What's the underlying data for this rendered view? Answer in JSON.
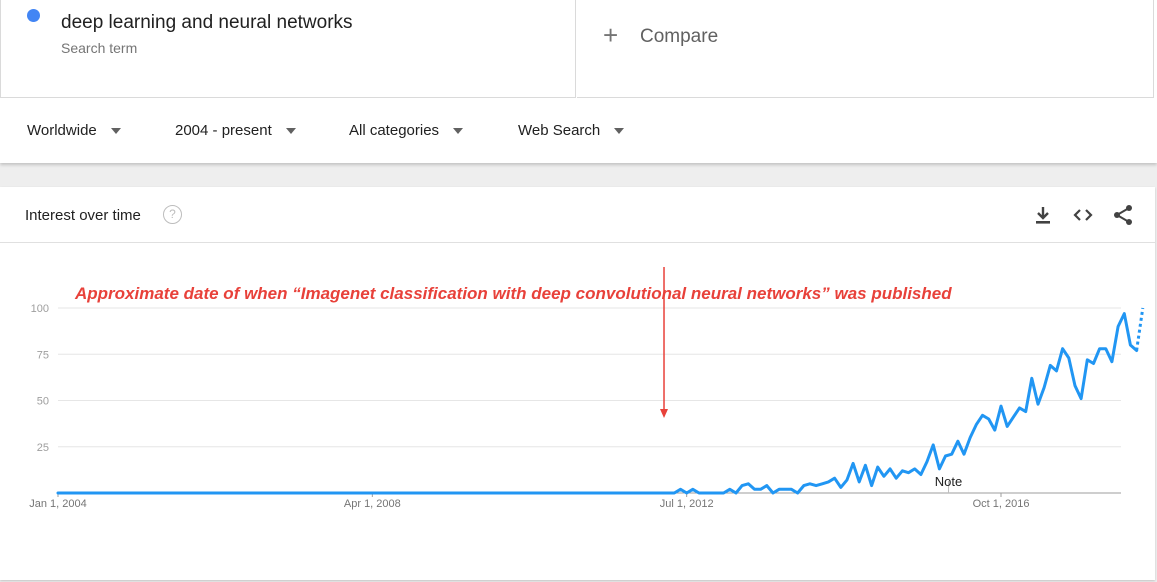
{
  "search": {
    "term": "deep learning and neural networks",
    "term_sub": "Search term",
    "term_color": "#4285f4",
    "compare_label": "Compare"
  },
  "filters": [
    {
      "label": "Worldwide"
    },
    {
      "label": "2004 - present"
    },
    {
      "label": "All categories"
    },
    {
      "label": "Web Search"
    }
  ],
  "card": {
    "title": "Interest over time",
    "help_icon": "question-circle-icon",
    "actions": [
      "download-icon",
      "embed-code-icon",
      "share-icon"
    ]
  },
  "annotation": {
    "text": "Approximate date of when “Imagenet classification with deep convolutional neural networks” was  published",
    "color": "#e8413a",
    "arrow_date": "2012-03"
  },
  "chart_data": {
    "type": "line",
    "ylim": [
      0,
      100
    ],
    "y_ticks": [
      25,
      50,
      75,
      100
    ],
    "grid": true,
    "x_ticks": [
      "Jan 1, 2004",
      "Apr 1, 2008",
      "Jul 1, 2012",
      "Oct 1, 2016"
    ],
    "x_range": [
      "2004-01",
      "2018-05"
    ],
    "note_label": "Note",
    "note_date": "2016-01",
    "line_color": "#2196f3",
    "series": [
      {
        "points": [
          [
            "2004-01",
            0
          ],
          [
            "2012-05",
            0
          ],
          [
            "2012-06",
            2
          ],
          [
            "2012-07",
            0
          ],
          [
            "2012-08",
            2
          ],
          [
            "2012-09",
            0
          ],
          [
            "2013-01",
            0
          ],
          [
            "2013-02",
            2
          ],
          [
            "2013-03",
            0
          ],
          [
            "2013-04",
            4
          ],
          [
            "2013-05",
            5
          ],
          [
            "2013-06",
            2
          ],
          [
            "2013-07",
            2
          ],
          [
            "2013-08",
            4
          ],
          [
            "2013-09",
            0
          ],
          [
            "2013-10",
            2
          ],
          [
            "2013-11",
            2
          ],
          [
            "2013-12",
            2
          ],
          [
            "2014-01",
            0
          ],
          [
            "2014-02",
            4
          ],
          [
            "2014-03",
            5
          ],
          [
            "2014-04",
            4
          ],
          [
            "2014-05",
            5
          ],
          [
            "2014-06",
            6
          ],
          [
            "2014-07",
            8
          ],
          [
            "2014-08",
            3
          ],
          [
            "2014-09",
            7
          ],
          [
            "2014-10",
            16
          ],
          [
            "2014-11",
            6
          ],
          [
            "2014-12",
            15
          ],
          [
            "2015-01",
            4
          ],
          [
            "2015-02",
            14
          ],
          [
            "2015-03",
            9
          ],
          [
            "2015-04",
            13
          ],
          [
            "2015-05",
            8
          ],
          [
            "2015-06",
            12
          ],
          [
            "2015-07",
            11
          ],
          [
            "2015-08",
            13
          ],
          [
            "2015-09",
            10
          ],
          [
            "2015-10",
            17
          ],
          [
            "2015-11",
            26
          ],
          [
            "2015-12",
            13
          ],
          [
            "2016-01",
            20
          ],
          [
            "2016-02",
            21
          ],
          [
            "2016-03",
            28
          ],
          [
            "2016-04",
            21
          ],
          [
            "2016-05",
            30
          ],
          [
            "2016-06",
            37
          ],
          [
            "2016-07",
            42
          ],
          [
            "2016-08",
            40
          ],
          [
            "2016-09",
            34
          ],
          [
            "2016-10",
            47
          ],
          [
            "2016-11",
            36
          ],
          [
            "2016-12",
            41
          ],
          [
            "2017-01",
            46
          ],
          [
            "2017-02",
            44
          ],
          [
            "2017-03",
            62
          ],
          [
            "2017-04",
            48
          ],
          [
            "2017-05",
            57
          ],
          [
            "2017-06",
            69
          ],
          [
            "2017-07",
            66
          ],
          [
            "2017-08",
            78
          ],
          [
            "2017-09",
            73
          ],
          [
            "2017-10",
            58
          ],
          [
            "2017-11",
            51
          ],
          [
            "2017-12",
            72
          ],
          [
            "2018-01",
            70
          ],
          [
            "2018-02",
            78
          ],
          [
            "2018-03",
            78
          ],
          [
            "2018-04",
            71
          ],
          [
            "2018-05",
            90
          ],
          [
            "2018-06",
            97
          ],
          [
            "2018-07",
            80
          ],
          [
            "2018-08",
            77
          ]
        ],
        "partial": [
          [
            "2018-08",
            77
          ],
          [
            "2018-09",
            100
          ]
        ]
      }
    ]
  }
}
